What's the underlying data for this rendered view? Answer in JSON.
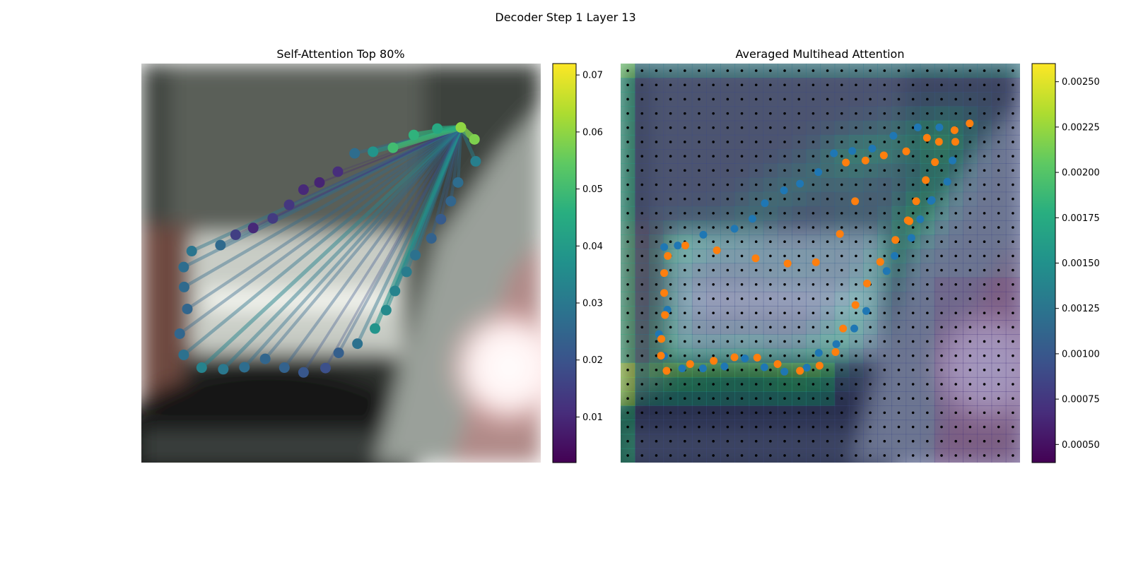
{
  "figure": {
    "title": "Decoder Step 1 Layer 13"
  },
  "chart_data": [
    {
      "type": "scatter",
      "title": "Self-Attention Top 80%",
      "background": "blurred camera image of a car front (headlight, bumper, wheel)",
      "colormap": "viridis",
      "colorbar": {
        "min": 0.002,
        "max": 0.072,
        "ticks": [
          "0.01",
          "0.02",
          "0.03",
          "0.04",
          "0.05",
          "0.06",
          "0.07"
        ]
      },
      "points": [
        {
          "x": 0.8,
          "y": 0.16,
          "v": 0.06
        },
        {
          "x": 0.834,
          "y": 0.19,
          "v": 0.058
        },
        {
          "x": 0.837,
          "y": 0.245,
          "v": 0.032
        },
        {
          "x": 0.793,
          "y": 0.298,
          "v": 0.027
        },
        {
          "x": 0.775,
          "y": 0.345,
          "v": 0.025
        },
        {
          "x": 0.75,
          "y": 0.39,
          "v": 0.022
        },
        {
          "x": 0.726,
          "y": 0.438,
          "v": 0.024
        },
        {
          "x": 0.686,
          "y": 0.48,
          "v": 0.028
        },
        {
          "x": 0.664,
          "y": 0.522,
          "v": 0.031
        },
        {
          "x": 0.635,
          "y": 0.57,
          "v": 0.033
        },
        {
          "x": 0.613,
          "y": 0.618,
          "v": 0.035
        },
        {
          "x": 0.585,
          "y": 0.664,
          "v": 0.038
        },
        {
          "x": 0.541,
          "y": 0.702,
          "v": 0.028
        },
        {
          "x": 0.494,
          "y": 0.725,
          "v": 0.023
        },
        {
          "x": 0.461,
          "y": 0.763,
          "v": 0.019
        },
        {
          "x": 0.406,
          "y": 0.774,
          "v": 0.021
        },
        {
          "x": 0.358,
          "y": 0.762,
          "v": 0.024
        },
        {
          "x": 0.31,
          "y": 0.74,
          "v": 0.025
        },
        {
          "x": 0.258,
          "y": 0.761,
          "v": 0.027
        },
        {
          "x": 0.205,
          "y": 0.766,
          "v": 0.03
        },
        {
          "x": 0.151,
          "y": 0.762,
          "v": 0.033
        },
        {
          "x": 0.106,
          "y": 0.73,
          "v": 0.028
        },
        {
          "x": 0.096,
          "y": 0.677,
          "v": 0.025
        },
        {
          "x": 0.115,
          "y": 0.615,
          "v": 0.025
        },
        {
          "x": 0.107,
          "y": 0.56,
          "v": 0.026
        },
        {
          "x": 0.106,
          "y": 0.51,
          "v": 0.027
        },
        {
          "x": 0.126,
          "y": 0.47,
          "v": 0.029
        },
        {
          "x": 0.198,
          "y": 0.455,
          "v": 0.026
        },
        {
          "x": 0.236,
          "y": 0.429,
          "v": 0.015
        },
        {
          "x": 0.28,
          "y": 0.412,
          "v": 0.01
        },
        {
          "x": 0.329,
          "y": 0.388,
          "v": 0.014
        },
        {
          "x": 0.37,
          "y": 0.354,
          "v": 0.013
        },
        {
          "x": 0.406,
          "y": 0.316,
          "v": 0.01
        },
        {
          "x": 0.446,
          "y": 0.298,
          "v": 0.009
        },
        {
          "x": 0.492,
          "y": 0.271,
          "v": 0.011
        },
        {
          "x": 0.534,
          "y": 0.225,
          "v": 0.027
        },
        {
          "x": 0.58,
          "y": 0.221,
          "v": 0.038
        },
        {
          "x": 0.63,
          "y": 0.211,
          "v": 0.05
        },
        {
          "x": 0.682,
          "y": 0.179,
          "v": 0.047
        },
        {
          "x": 0.741,
          "y": 0.163,
          "v": 0.044
        }
      ],
      "attention_source_index": 0
    },
    {
      "type": "heatmap",
      "title": "Averaged Multihead Attention",
      "background": "blurred camera image of a car front overlaid with attention heatmap",
      "colormap": "viridis",
      "colorbar": {
        "min": 0.0004,
        "max": 0.0026,
        "ticks": [
          "0.00050",
          "0.00075",
          "0.00100",
          "0.00125",
          "0.00150",
          "0.00175",
          "0.00200",
          "0.00225",
          "0.00250"
        ]
      },
      "grid": {
        "cols": 28,
        "rows": 28
      },
      "series": [
        {
          "color": "#1f77b4",
          "points": [
            {
              "x": 0.109,
              "y": 0.46
            },
            {
              "x": 0.143,
              "y": 0.456
            },
            {
              "x": 0.207,
              "y": 0.429
            },
            {
              "x": 0.285,
              "y": 0.414
            },
            {
              "x": 0.33,
              "y": 0.389
            },
            {
              "x": 0.361,
              "y": 0.35
            },
            {
              "x": 0.409,
              "y": 0.318
            },
            {
              "x": 0.449,
              "y": 0.301
            },
            {
              "x": 0.495,
              "y": 0.272
            },
            {
              "x": 0.534,
              "y": 0.225
            },
            {
              "x": 0.58,
              "y": 0.219
            },
            {
              "x": 0.63,
              "y": 0.213
            },
            {
              "x": 0.683,
              "y": 0.181
            },
            {
              "x": 0.744,
              "y": 0.16
            },
            {
              "x": 0.798,
              "y": 0.16
            },
            {
              "x": 0.831,
              "y": 0.243
            },
            {
              "x": 0.777,
              "y": 0.344
            },
            {
              "x": 0.75,
              "y": 0.39
            },
            {
              "x": 0.728,
              "y": 0.437
            },
            {
              "x": 0.686,
              "y": 0.482
            },
            {
              "x": 0.666,
              "y": 0.52
            },
            {
              "x": 0.615,
              "y": 0.62
            },
            {
              "x": 0.585,
              "y": 0.664
            },
            {
              "x": 0.54,
              "y": 0.703
            },
            {
              "x": 0.496,
              "y": 0.725
            },
            {
              "x": 0.466,
              "y": 0.762
            },
            {
              "x": 0.41,
              "y": 0.772
            },
            {
              "x": 0.36,
              "y": 0.761
            },
            {
              "x": 0.311,
              "y": 0.739
            },
            {
              "x": 0.26,
              "y": 0.759
            },
            {
              "x": 0.206,
              "y": 0.764
            },
            {
              "x": 0.154,
              "y": 0.764
            },
            {
              "x": 0.109,
              "y": 0.733
            },
            {
              "x": 0.096,
              "y": 0.678
            },
            {
              "x": 0.117,
              "y": 0.617
            },
            {
              "x": 0.818,
              "y": 0.296
            },
            {
              "x": 0.779,
              "y": 0.342
            }
          ]
        },
        {
          "color": "#ff7f0e",
          "points": [
            {
              "x": 0.101,
              "y": 0.732
            },
            {
              "x": 0.115,
              "y": 0.77
            },
            {
              "x": 0.174,
              "y": 0.753
            },
            {
              "x": 0.233,
              "y": 0.745
            },
            {
              "x": 0.285,
              "y": 0.736
            },
            {
              "x": 0.342,
              "y": 0.737
            },
            {
              "x": 0.393,
              "y": 0.753
            },
            {
              "x": 0.449,
              "y": 0.77
            },
            {
              "x": 0.498,
              "y": 0.757
            },
            {
              "x": 0.538,
              "y": 0.723
            },
            {
              "x": 0.557,
              "y": 0.664
            },
            {
              "x": 0.588,
              "y": 0.605
            },
            {
              "x": 0.617,
              "y": 0.551
            },
            {
              "x": 0.65,
              "y": 0.497
            },
            {
              "x": 0.688,
              "y": 0.442
            },
            {
              "x": 0.719,
              "y": 0.393
            },
            {
              "x": 0.74,
              "y": 0.345
            },
            {
              "x": 0.764,
              "y": 0.292
            },
            {
              "x": 0.787,
              "y": 0.247
            },
            {
              "x": 0.797,
              "y": 0.196
            },
            {
              "x": 0.838,
              "y": 0.196
            },
            {
              "x": 0.874,
              "y": 0.15
            },
            {
              "x": 0.836,
              "y": 0.167
            },
            {
              "x": 0.767,
              "y": 0.186
            },
            {
              "x": 0.715,
              "y": 0.22
            },
            {
              "x": 0.659,
              "y": 0.23
            },
            {
              "x": 0.613,
              "y": 0.243
            },
            {
              "x": 0.564,
              "y": 0.248
            },
            {
              "x": 0.587,
              "y": 0.345
            },
            {
              "x": 0.549,
              "y": 0.427
            },
            {
              "x": 0.489,
              "y": 0.498
            },
            {
              "x": 0.418,
              "y": 0.501
            },
            {
              "x": 0.338,
              "y": 0.488
            },
            {
              "x": 0.241,
              "y": 0.468
            },
            {
              "x": 0.162,
              "y": 0.456
            },
            {
              "x": 0.118,
              "y": 0.482
            },
            {
              "x": 0.109,
              "y": 0.525
            },
            {
              "x": 0.109,
              "y": 0.575
            },
            {
              "x": 0.111,
              "y": 0.63
            },
            {
              "x": 0.102,
              "y": 0.69
            },
            {
              "x": 0.723,
              "y": 0.395
            }
          ]
        }
      ]
    }
  ]
}
